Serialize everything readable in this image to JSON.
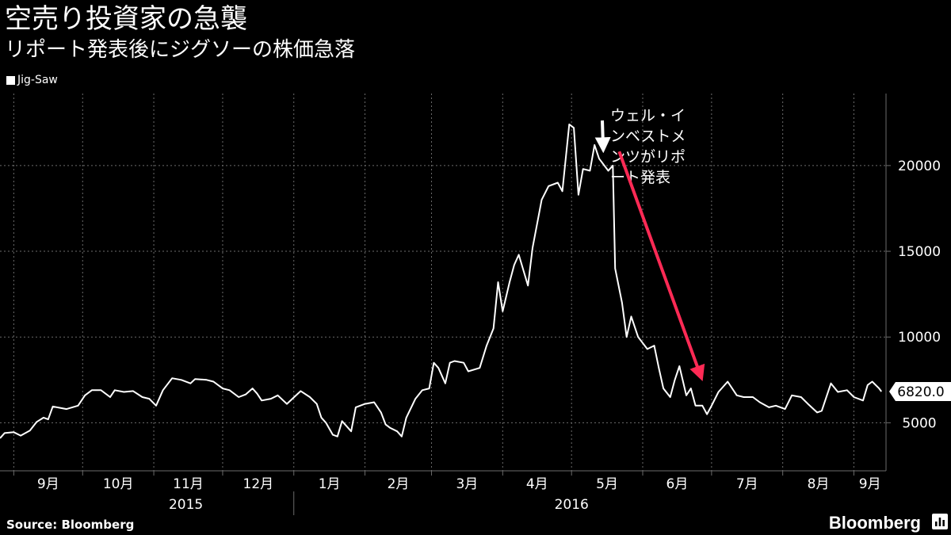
{
  "header": {
    "title": "空売り投資家の急襲",
    "subtitle": "リポート発表後にジグソーの株価急落"
  },
  "footer": {
    "source": "Source: Bloomberg",
    "brand": "Bloomberg",
    "brand_icon": "bloomberg-terminal-icon"
  },
  "colors": {
    "background": "#000000",
    "series": "#ffffff",
    "arrow": "#ff2a55",
    "grid": "#6b6b6b"
  },
  "chart_data": {
    "type": "line",
    "title": "空売り投資家の急襲",
    "subtitle": "リポート発表後にジグソーの株価急落",
    "legend_placement": "top-left",
    "grid": true,
    "ylim": [
      2200,
      24200
    ],
    "xlim": [
      "2015-08-26",
      "2016-09-15"
    ],
    "yticks": [
      5000,
      10000,
      15000,
      20000
    ],
    "month_ticks": [
      {
        "label": "9月",
        "date": "2015-09-01"
      },
      {
        "label": "10月",
        "date": "2015-10-01"
      },
      {
        "label": "11月",
        "date": "2015-11-01"
      },
      {
        "label": "12月",
        "date": "2015-12-01"
      },
      {
        "label": "1月",
        "date": "2016-01-01"
      },
      {
        "label": "2月",
        "date": "2016-02-01"
      },
      {
        "label": "3月",
        "date": "2016-03-01"
      },
      {
        "label": "4月",
        "date": "2016-04-01"
      },
      {
        "label": "5月",
        "date": "2016-05-01"
      },
      {
        "label": "6月",
        "date": "2016-06-01"
      },
      {
        "label": "7月",
        "date": "2016-07-01"
      },
      {
        "label": "8月",
        "date": "2016-08-01"
      },
      {
        "label": "9月",
        "date": "2016-09-01"
      }
    ],
    "year_labels": [
      {
        "label": "2015",
        "date": "2015-11-15"
      },
      {
        "label": "2016",
        "date": "2016-05-01"
      }
    ],
    "year_divider": "2016-01-01",
    "last_value_label": "6820.0",
    "series": [
      {
        "name": "Jig-Saw",
        "points": [
          [
            "2015-08-26",
            4100
          ],
          [
            "2015-08-28",
            4400
          ],
          [
            "2015-09-01",
            4450
          ],
          [
            "2015-09-04",
            4250
          ],
          [
            "2015-09-08",
            4550
          ],
          [
            "2015-09-11",
            5050
          ],
          [
            "2015-09-14",
            5300
          ],
          [
            "2015-09-16",
            5200
          ],
          [
            "2015-09-18",
            5950
          ],
          [
            "2015-09-24",
            5800
          ],
          [
            "2015-09-29",
            6000
          ],
          [
            "2015-10-02",
            6600
          ],
          [
            "2015-10-05",
            6900
          ],
          [
            "2015-10-09",
            6900
          ],
          [
            "2015-10-13",
            6500
          ],
          [
            "2015-10-15",
            6900
          ],
          [
            "2015-10-19",
            6800
          ],
          [
            "2015-10-23",
            6850
          ],
          [
            "2015-10-27",
            6500
          ],
          [
            "2015-10-30",
            6400
          ],
          [
            "2015-11-02",
            6000
          ],
          [
            "2015-11-05",
            6900
          ],
          [
            "2015-11-09",
            7600
          ],
          [
            "2015-11-13",
            7500
          ],
          [
            "2015-11-17",
            7300
          ],
          [
            "2015-11-19",
            7550
          ],
          [
            "2015-11-24",
            7500
          ],
          [
            "2015-11-27",
            7400
          ],
          [
            "2015-12-01",
            7000
          ],
          [
            "2015-12-04",
            6900
          ],
          [
            "2015-12-08",
            6500
          ],
          [
            "2015-12-11",
            6650
          ],
          [
            "2015-12-14",
            7000
          ],
          [
            "2015-12-16",
            6700
          ],
          [
            "2015-12-18",
            6300
          ],
          [
            "2015-12-22",
            6400
          ],
          [
            "2015-12-25",
            6600
          ],
          [
            "2015-12-29",
            6100
          ],
          [
            "2016-01-04",
            6850
          ],
          [
            "2016-01-08",
            6500
          ],
          [
            "2016-01-11",
            6100
          ],
          [
            "2016-01-13",
            5300
          ],
          [
            "2016-01-15",
            5000
          ],
          [
            "2016-01-18",
            4300
          ],
          [
            "2016-01-20",
            4200
          ],
          [
            "2016-01-22",
            5100
          ],
          [
            "2016-01-26",
            4500
          ],
          [
            "2016-01-28",
            5900
          ],
          [
            "2016-02-01",
            6100
          ],
          [
            "2016-02-05",
            6200
          ],
          [
            "2016-02-08",
            5600
          ],
          [
            "2016-02-10",
            4900
          ],
          [
            "2016-02-12",
            4700
          ],
          [
            "2016-02-15",
            4500
          ],
          [
            "2016-02-17",
            4200
          ],
          [
            "2016-02-19",
            5300
          ],
          [
            "2016-02-23",
            6400
          ],
          [
            "2016-02-26",
            6900
          ],
          [
            "2016-02-29",
            7000
          ],
          [
            "2016-03-02",
            8500
          ],
          [
            "2016-03-04",
            8200
          ],
          [
            "2016-03-07",
            7300
          ],
          [
            "2016-03-09",
            8500
          ],
          [
            "2016-03-11",
            8600
          ],
          [
            "2016-03-15",
            8500
          ],
          [
            "2016-03-17",
            8000
          ],
          [
            "2016-03-22",
            8200
          ],
          [
            "2016-03-25",
            9500
          ],
          [
            "2016-03-28",
            10500
          ],
          [
            "2016-03-30",
            13200
          ],
          [
            "2016-04-01",
            11500
          ],
          [
            "2016-04-04",
            13200
          ],
          [
            "2016-04-06",
            14200
          ],
          [
            "2016-04-08",
            14800
          ],
          [
            "2016-04-12",
            13000
          ],
          [
            "2016-04-14",
            15200
          ],
          [
            "2016-04-18",
            18000
          ],
          [
            "2016-04-21",
            18800
          ],
          [
            "2016-04-25",
            19000
          ],
          [
            "2016-04-27",
            18500
          ],
          [
            "2016-04-30",
            22400
          ],
          [
            "2016-05-02",
            22200
          ],
          [
            "2016-05-04",
            18300
          ],
          [
            "2016-05-06",
            19800
          ],
          [
            "2016-05-09",
            19700
          ],
          [
            "2016-05-11",
            21200
          ],
          [
            "2016-05-13",
            20400
          ],
          [
            "2016-05-17",
            19700
          ],
          [
            "2016-05-19",
            20000
          ],
          [
            "2016-05-20",
            14000
          ],
          [
            "2016-05-23",
            12000
          ],
          [
            "2016-05-25",
            10000
          ],
          [
            "2016-05-27",
            11200
          ],
          [
            "2016-05-30",
            10000
          ],
          [
            "2016-06-03",
            9300
          ],
          [
            "2016-06-06",
            9500
          ],
          [
            "2016-06-08",
            8200
          ],
          [
            "2016-06-10",
            7000
          ],
          [
            "2016-06-13",
            6500
          ],
          [
            "2016-06-15",
            7500
          ],
          [
            "2016-06-17",
            8300
          ],
          [
            "2016-06-20",
            6600
          ],
          [
            "2016-06-22",
            7000
          ],
          [
            "2016-06-24",
            6000
          ],
          [
            "2016-06-27",
            6000
          ],
          [
            "2016-06-29",
            5500
          ],
          [
            "2016-07-01",
            6000
          ],
          [
            "2016-07-04",
            6800
          ],
          [
            "2016-07-08",
            7400
          ],
          [
            "2016-07-12",
            6600
          ],
          [
            "2016-07-15",
            6500
          ],
          [
            "2016-07-19",
            6500
          ],
          [
            "2016-07-22",
            6200
          ],
          [
            "2016-07-26",
            5900
          ],
          [
            "2016-07-29",
            6000
          ],
          [
            "2016-08-02",
            5800
          ],
          [
            "2016-08-05",
            6600
          ],
          [
            "2016-08-09",
            6500
          ],
          [
            "2016-08-12",
            6100
          ],
          [
            "2016-08-16",
            5600
          ],
          [
            "2016-08-18",
            5700
          ],
          [
            "2016-08-22",
            7300
          ],
          [
            "2016-08-25",
            6800
          ],
          [
            "2016-08-29",
            6900
          ],
          [
            "2016-09-01",
            6500
          ],
          [
            "2016-09-05",
            6300
          ],
          [
            "2016-09-07",
            7200
          ],
          [
            "2016-09-09",
            7400
          ],
          [
            "2016-09-12",
            7000
          ],
          [
            "2016-09-13",
            6820
          ]
        ]
      }
    ],
    "annotations": [
      {
        "type": "arrow",
        "color": "white",
        "text": "ウェル・イ\nンベストメ\nンツがリポ\nート発表",
        "target": [
          "2016-05-12",
          21000
        ]
      },
      {
        "type": "arrow",
        "color": "red",
        "from": [
          "2016-05-19",
          21000
        ],
        "to": [
          "2016-07-01",
          7400
        ]
      }
    ]
  }
}
